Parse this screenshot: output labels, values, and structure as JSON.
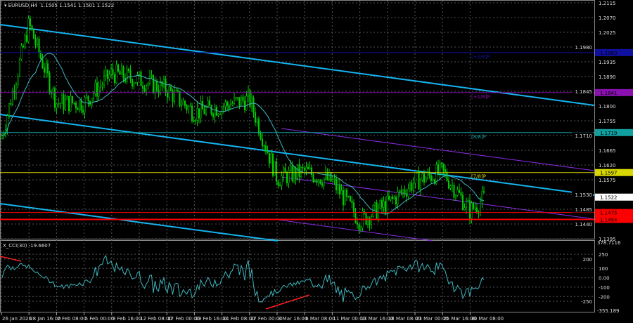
{
  "header": {
    "symbol": "EURUSD,H4",
    "ohlc": "1.1505 1.1541 1.1501 1.1522"
  },
  "indicator": {
    "label": "X_CCI(30) -19.6607"
  },
  "colors": {
    "bull": "#00cc00",
    "bear": "#00cc00",
    "ma": "#3fb8c0",
    "channel": "#16b4f0",
    "channel2": "#8a2be2",
    "cci": "#3fb8c0",
    "divergence": "#ff2020"
  },
  "chart_data": {
    "type": "candlestick",
    "symbol": "EURUSD",
    "timeframe": "H4",
    "ylim": [
      1.1395,
      1.2115
    ],
    "y_ticks": [
      "1.2115",
      "1.2070",
      "1.2025",
      "1.1980",
      "1.1935",
      "1.1890",
      "1.1845",
      "1.1800",
      "1.1755",
      "1.1710",
      "1.1665",
      "1.1620",
      "1.1575",
      "1.1530",
      "1.1485",
      "1.1440",
      "1.1395"
    ],
    "x_ticks": [
      "26 Jan 2026",
      "28 Jan 16:00",
      "2 Feb 08:00",
      "5 Feb 00:00",
      "9 Feb 16:00",
      "12 Feb 08:00",
      "17 Feb 00:00",
      "19 Feb 16:00",
      "24 Feb 08:00",
      "27 Feb 00:00",
      "3 Mar 16:00",
      "6 Mar 08:00",
      "11 Mar 00:00",
      "13 Mar 16:00",
      "18 Mar 08:00",
      "23 Mar 00:00",
      "25 Mar 16:00",
      "30 Mar 08:00"
    ],
    "closes_at_ticks": [
      1.17,
      1.205,
      1.181,
      1.181,
      1.19,
      1.188,
      1.185,
      1.178,
      1.18,
      1.182,
      1.158,
      1.16,
      1.157,
      1.145,
      1.15,
      1.157,
      1.16,
      1.148
    ],
    "last_close": 1.1522,
    "levels": [
      {
        "price": "1.1963",
        "label": "[+2/8]P",
        "color": "#1010a0"
      },
      {
        "price": "1.1841",
        "label": "[+1/8]P",
        "color": "#8a10b0"
      },
      {
        "price": "1.1719",
        "label": "[8/8]P",
        "color": "#10a0a0"
      },
      {
        "price": "1.1597",
        "label": "[7/8]P",
        "color": "#d8d800"
      },
      {
        "price": "1.1475",
        "label": "",
        "color": "#ff0000"
      },
      {
        "price": "1.1454",
        "label": "",
        "color": "#ff0000"
      }
    ],
    "current_price": "1.1522",
    "cci": {
      "ylim": [
        -355.189,
        378.7116
      ],
      "max_label": "378.7116",
      "min_label": "-355.189",
      "ticks": [
        "250",
        "200",
        "100",
        "0.00",
        "-100",
        "-200",
        "-250"
      ],
      "last": -19.6607
    }
  }
}
